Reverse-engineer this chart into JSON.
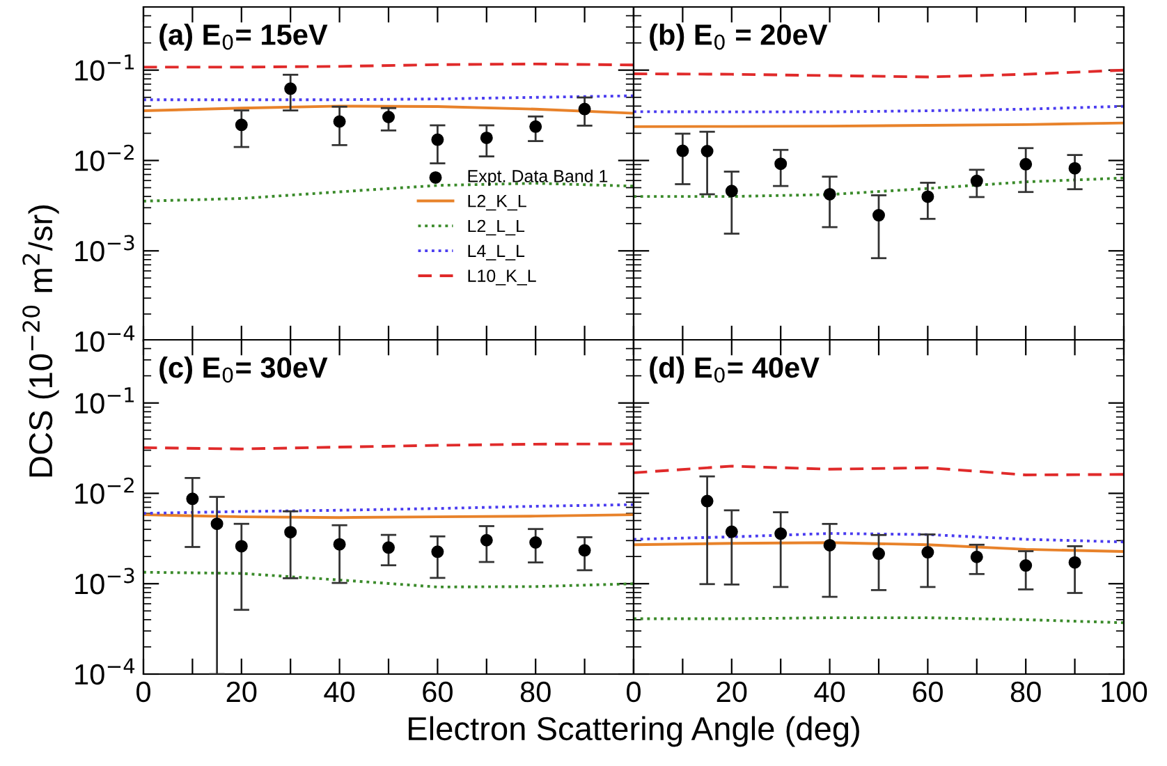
{
  "chart_data": [
    {
      "type": "line",
      "title": "(a) E$_{0}$= 15eV",
      "ylabel": "DCS (10$^{−20}$ m$^{2}$/sr)",
      "log": "y",
      "xlim": [
        0,
        100
      ],
      "ylim": [
        0.0001,
        0.5
      ],
      "xticks": [
        0,
        {
          "value": 10,
          "label": null
        },
        20,
        {
          "value": 30,
          "label": null
        },
        40,
        {
          "value": 50,
          "label": null
        },
        60,
        {
          "value": 70,
          "label": null
        },
        80,
        {
          "value": 90,
          "label": null
        },
        100
      ],
      "yticks": [
        {
          "value": 0.0001,
          "label": "10$^{−4}$"
        },
        {
          "value": 0.001,
          "label": "10$^{−3}$"
        },
        {
          "value": 0.01,
          "label": "10$^{−2}$"
        },
        {
          "value": 0.1,
          "label": "10$^{−1}$"
        }
      ],
      "tick_labels": "y",
      "legend": "lower right",
      "grid": false,
      "series": [
        {
          "name": "Expt. Data Band 1",
          "type": "scatter",
          "marker": "circle",
          "color": "#000000",
          "x": [
            20,
            30,
            40,
            50,
            60,
            70,
            80,
            90
          ],
          "values": [
            0.0248,
            0.0623,
            0.027,
            0.0303,
            0.017,
            0.0178,
            0.0237,
            0.0371
          ],
          "errors": [
            [
              0.0141,
              0.0358
            ],
            [
              0.0358,
              0.0889
            ],
            [
              0.0148,
              0.0394
            ],
            [
              0.0215,
              0.038
            ],
            [
              0.0093,
              0.0245
            ],
            [
              0.0111,
              0.0245
            ],
            [
              0.0164,
              0.0307
            ],
            [
              0.0243,
              0.0498
            ]
          ]
        },
        {
          "name": "L2_K_L",
          "line_style": "solid",
          "marker": "none",
          "color": "#e8822a",
          "x": [
            0,
            20,
            40,
            60,
            80,
            100
          ],
          "values": [
            0.0355,
            0.038,
            0.04,
            0.0395,
            0.037,
            0.0333
          ]
        },
        {
          "name": "L2_L_L",
          "line_style": "dotted",
          "marker": "none",
          "color": "#3a8a2a",
          "x": [
            0,
            20,
            40,
            60,
            80,
            100
          ],
          "values": [
            0.00355,
            0.0038,
            0.0045,
            0.0053,
            0.0056,
            0.0052
          ]
        },
        {
          "name": "L4_L_L",
          "line_style": "dotted",
          "marker": "none",
          "color": "#4a3cf0",
          "x": [
            0,
            20,
            40,
            60,
            80,
            100
          ],
          "values": [
            0.047,
            0.047,
            0.047,
            0.048,
            0.05,
            0.052
          ]
        },
        {
          "name": "L10_K_L",
          "line_style": "dashed",
          "marker": "none",
          "color": "#e02a2a",
          "x": [
            0,
            20,
            40,
            60,
            80,
            100
          ],
          "values": [
            0.108,
            0.108,
            0.11,
            0.115,
            0.117,
            0.114
          ]
        }
      ]
    },
    {
      "type": "line",
      "title": "(b) E$_{0}$ = 20eV",
      "log": "y",
      "xlim": [
        0,
        100
      ],
      "ylim": [
        0.0001,
        0.5
      ],
      "xticks": [
        0,
        {
          "value": 10,
          "label": null
        },
        20,
        {
          "value": 30,
          "label": null
        },
        40,
        {
          "value": 50,
          "label": null
        },
        60,
        {
          "value": 70,
          "label": null
        },
        80,
        {
          "value": 90,
          "label": null
        },
        100
      ],
      "yticks": [
        {
          "value": 0.0001,
          "label": null
        },
        {
          "value": 0.001,
          "label": null
        },
        {
          "value": 0.01,
          "label": null
        },
        {
          "value": 0.1,
          "label": null
        }
      ],
      "tick_labels": false,
      "grid": false,
      "series": [
        {
          "type": "scatter",
          "marker": "circle",
          "color": "#000000",
          "x": [
            10,
            15,
            20,
            30,
            40,
            50,
            60,
            70,
            80,
            90
          ],
          "values": [
            0.0128,
            0.0127,
            0.00459,
            0.0092,
            0.00423,
            0.00248,
            0.00398,
            0.00594,
            0.0091,
            0.0082
          ],
          "errors": [
            [
              0.00547,
              0.0198
            ],
            [
              0.00423,
              0.0208
            ],
            [
              0.00155,
              0.00753
            ],
            [
              0.00522,
              0.0131
            ],
            [
              0.00183,
              0.00662
            ],
            [
              0.00083,
              0.00412
            ],
            [
              0.00226,
              0.00567
            ],
            [
              0.00394,
              0.00789
            ],
            [
              0.00448,
              0.0137
            ],
            [
              0.00481,
              0.0115
            ]
          ]
        },
        {
          "line_style": "solid",
          "marker": "none",
          "color": "#e8822a",
          "x": [
            0,
            20,
            40,
            60,
            80,
            100
          ],
          "values": [
            0.0237,
            0.0238,
            0.024,
            0.0245,
            0.025,
            0.026
          ]
        },
        {
          "line_style": "dotted",
          "marker": "none",
          "color": "#3a8a2a",
          "x": [
            0,
            20,
            40,
            60,
            80,
            100
          ],
          "values": [
            0.004,
            0.004,
            0.0042,
            0.0049,
            0.0058,
            0.0064
          ]
        },
        {
          "line_style": "dotted",
          "marker": "none",
          "color": "#4a3cf0",
          "x": [
            0,
            20,
            40,
            60,
            80,
            100
          ],
          "values": [
            0.0347,
            0.0345,
            0.0345,
            0.0355,
            0.037,
            0.0398
          ]
        },
        {
          "line_style": "dashed",
          "marker": "none",
          "color": "#e02a2a",
          "x": [
            0,
            20,
            40,
            60,
            80,
            100
          ],
          "values": [
            0.091,
            0.09,
            0.087,
            0.084,
            0.09,
            0.1
          ]
        }
      ]
    },
    {
      "type": "line",
      "title": "(c) E$_{0}$= 30eV",
      "xlabel": "Electron Scattering Angle (deg)",
      "log": "y",
      "xlim": [
        0,
        100
      ],
      "ylim": [
        0.0001,
        0.5
      ],
      "xticks": [
        0,
        {
          "value": 10,
          "label": null
        },
        20,
        {
          "value": 30,
          "label": null
        },
        40,
        {
          "value": 50,
          "label": null
        },
        60,
        {
          "value": 70,
          "label": null
        },
        80,
        {
          "value": 90,
          "label": null
        },
        {
          "value": 100,
          "label": null
        }
      ],
      "yticks": [
        {
          "value": 0.0001,
          "label": "10$^{−4}$"
        },
        {
          "value": 0.001,
          "label": "10$^{−3}$"
        },
        {
          "value": 0.01,
          "label": "10$^{−2}$"
        },
        {
          "value": 0.1,
          "label": "10$^{−1}$"
        }
      ],
      "grid": false,
      "series": [
        {
          "type": "scatter",
          "marker": "circle",
          "color": "#000000",
          "x": [
            10,
            15,
            20,
            30,
            40,
            50,
            60,
            70,
            80,
            90
          ],
          "values": [
            0.0087,
            0.0046,
            0.0026,
            0.00372,
            0.00273,
            0.00251,
            0.00226,
            0.00303,
            0.00286,
            0.00234
          ],
          "errors": [
            [
              0.00255,
              0.0148
            ],
            [
              0.0001,
              0.00914
            ],
            [
              0.000514,
              0.0046
            ],
            [
              0.00115,
              0.00633
            ],
            [
              0.00102,
              0.00444
            ],
            [
              0.0016,
              0.00347
            ],
            [
              0.00116,
              0.00334
            ],
            [
              0.00174,
              0.00434
            ],
            [
              0.00172,
              0.00403
            ],
            [
              0.00141,
              0.00327
            ]
          ]
        },
        {
          "line_style": "solid",
          "marker": "none",
          "color": "#e8822a",
          "x": [
            0,
            20,
            40,
            60,
            80,
            100
          ],
          "values": [
            0.0058,
            0.0055,
            0.0054,
            0.0055,
            0.0056,
            0.0058
          ]
        },
        {
          "line_style": "dotted",
          "marker": "none",
          "color": "#3a8a2a",
          "x": [
            0,
            20,
            40,
            60,
            80,
            100
          ],
          "values": [
            0.00134,
            0.0013,
            0.0011,
            0.00092,
            0.00093,
            0.001
          ]
        },
        {
          "line_style": "dotted",
          "marker": "none",
          "color": "#4a3cf0",
          "x": [
            0,
            20,
            40,
            60,
            80,
            100
          ],
          "values": [
            0.006,
            0.0063,
            0.0065,
            0.0068,
            0.0072,
            0.0075
          ]
        },
        {
          "line_style": "dashed",
          "marker": "none",
          "color": "#e02a2a",
          "x": [
            0,
            20,
            40,
            60,
            80,
            100
          ],
          "values": [
            0.032,
            0.031,
            0.0325,
            0.034,
            0.035,
            0.0353
          ]
        }
      ]
    },
    {
      "type": "line",
      "title": "(d) E$_{0}$= 40eV",
      "log": "y",
      "xlim": [
        0,
        100
      ],
      "ylim": [
        0.0001,
        0.5
      ],
      "xticks": [
        0,
        {
          "value": 10,
          "label": null
        },
        20,
        {
          "value": 30,
          "label": null
        },
        40,
        {
          "value": 50,
          "label": null
        },
        60,
        {
          "value": 70,
          "label": null
        },
        80,
        {
          "value": 90,
          "label": null
        },
        100
      ],
      "yticks": [
        {
          "value": 0.0001,
          "label": null
        },
        {
          "value": 0.001,
          "label": null
        },
        {
          "value": 0.01,
          "label": null
        },
        {
          "value": 0.1,
          "label": null
        }
      ],
      "tick_labels": "x",
      "grid": false,
      "series": [
        {
          "type": "scatter",
          "marker": "circle",
          "color": "#000000",
          "x": [
            15,
            20,
            30,
            40,
            50,
            60,
            70,
            80,
            90
          ],
          "values": [
            0.00822,
            0.00376,
            0.00358,
            0.00267,
            0.00215,
            0.00223,
            0.00198,
            0.00159,
            0.00172
          ],
          "errors": [
            [
              0.00099,
              0.0154
            ],
            [
              0.00098,
              0.00649
            ],
            [
              0.00092,
              0.00618
            ],
            [
              0.000716,
              0.00459
            ],
            [
              0.00085,
              0.00346
            ],
            [
              0.00092,
              0.00351
            ],
            [
              0.00128,
              0.0027
            ],
            [
              0.000865,
              0.00229
            ],
            [
              0.00079,
              0.0026
            ]
          ]
        },
        {
          "line_style": "solid",
          "marker": "none",
          "color": "#e8822a",
          "x": [
            0,
            20,
            40,
            60,
            80,
            100
          ],
          "values": [
            0.0027,
            0.0028,
            0.00285,
            0.0027,
            0.0024,
            0.00227
          ]
        },
        {
          "line_style": "dotted",
          "marker": "none",
          "color": "#3a8a2a",
          "x": [
            0,
            20,
            40,
            60,
            80,
            100
          ],
          "values": [
            0.00041,
            0.00041,
            0.00042,
            0.00042,
            0.0004,
            0.00037
          ]
        },
        {
          "line_style": "dotted",
          "marker": "none",
          "color": "#4a3cf0",
          "x": [
            0,
            20,
            40,
            60,
            80,
            100
          ],
          "values": [
            0.0031,
            0.0033,
            0.0036,
            0.0035,
            0.0031,
            0.0029
          ]
        },
        {
          "line_style": "dashed",
          "marker": "none",
          "color": "#e02a2a",
          "x": [
            0,
            20,
            40,
            60,
            80,
            100
          ],
          "values": [
            0.0169,
            0.02,
            0.0185,
            0.0192,
            0.016,
            0.0162
          ]
        }
      ]
    }
  ]
}
